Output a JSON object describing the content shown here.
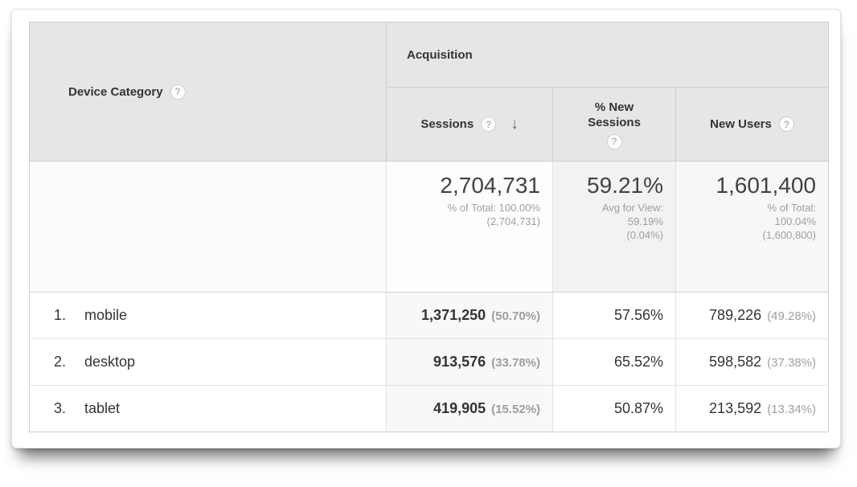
{
  "header": {
    "dimension_label": "Device Category",
    "group_label": "Acquisition",
    "col_sessions": "Sessions",
    "col_new_sessions": "% New Sessions",
    "col_new_users": "New Users",
    "help_glyph": "?",
    "sort_arrow": "↓"
  },
  "summary": {
    "sessions": {
      "value": "2,704,731",
      "line1": "% of Total: 100.00%",
      "line2": "(2,704,731)"
    },
    "new_sessions": {
      "value": "59.21%",
      "line1": "Avg for View:",
      "line2": "59.19%",
      "line3": "(0.04%)"
    },
    "new_users": {
      "value": "1,601,400",
      "line1": "% of Total:",
      "line2": "100.04%",
      "line3": "(1,600,800)"
    }
  },
  "rows": [
    {
      "rank": "1.",
      "device": "mobile",
      "sessions": "1,371,250",
      "sessions_pct": "(50.70%)",
      "pct_new_sessions": "57.56%",
      "new_users": "789,226",
      "new_users_pct": "(49.28%)"
    },
    {
      "rank": "2.",
      "device": "desktop",
      "sessions": "913,576",
      "sessions_pct": "(33.78%)",
      "pct_new_sessions": "65.52%",
      "new_users": "598,582",
      "new_users_pct": "(37.38%)"
    },
    {
      "rank": "3.",
      "device": "tablet",
      "sessions": "419,905",
      "sessions_pct": "(15.52%)",
      "pct_new_sessions": "50.87%",
      "new_users": "213,592",
      "new_users_pct": "(13.34%)"
    }
  ],
  "colors": {
    "header_bg": "#e6e6e6",
    "sorted_column_bg": "#f8f8f8",
    "summary_mid_bg": "#f2f2f2",
    "text_dark": "#333333",
    "text_gray": "#9e9e9e",
    "border": "#cdcdcd"
  }
}
